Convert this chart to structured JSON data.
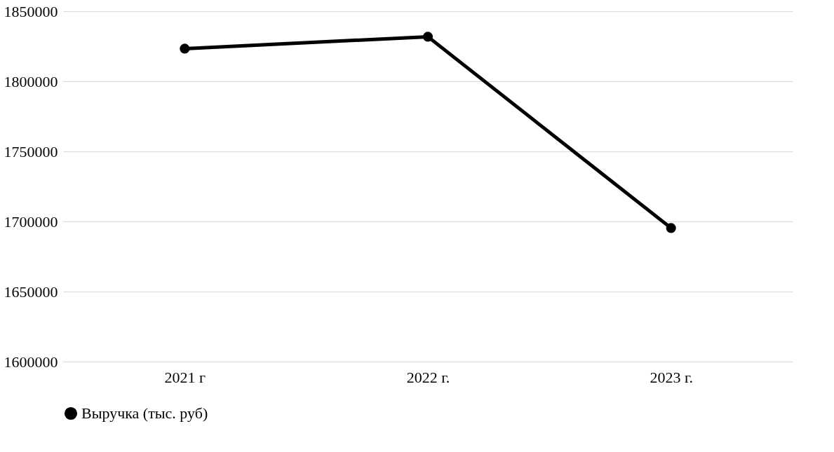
{
  "chart_data": {
    "type": "line",
    "categories": [
      "2021 г",
      "2022 г.",
      "2023 г."
    ],
    "series": [
      {
        "name": "Выручка (тыс. руб)",
        "color": "#000000",
        "values": [
          1823300,
          1831800,
          1695300
        ]
      }
    ],
    "ylim": [
      1600000,
      1850000
    ],
    "yticks": [
      1600000,
      1650000,
      1700000,
      1750000,
      1800000,
      1850000
    ],
    "grid": "y",
    "legend": "bottom",
    "marker": "circle",
    "line_style": "solid"
  }
}
